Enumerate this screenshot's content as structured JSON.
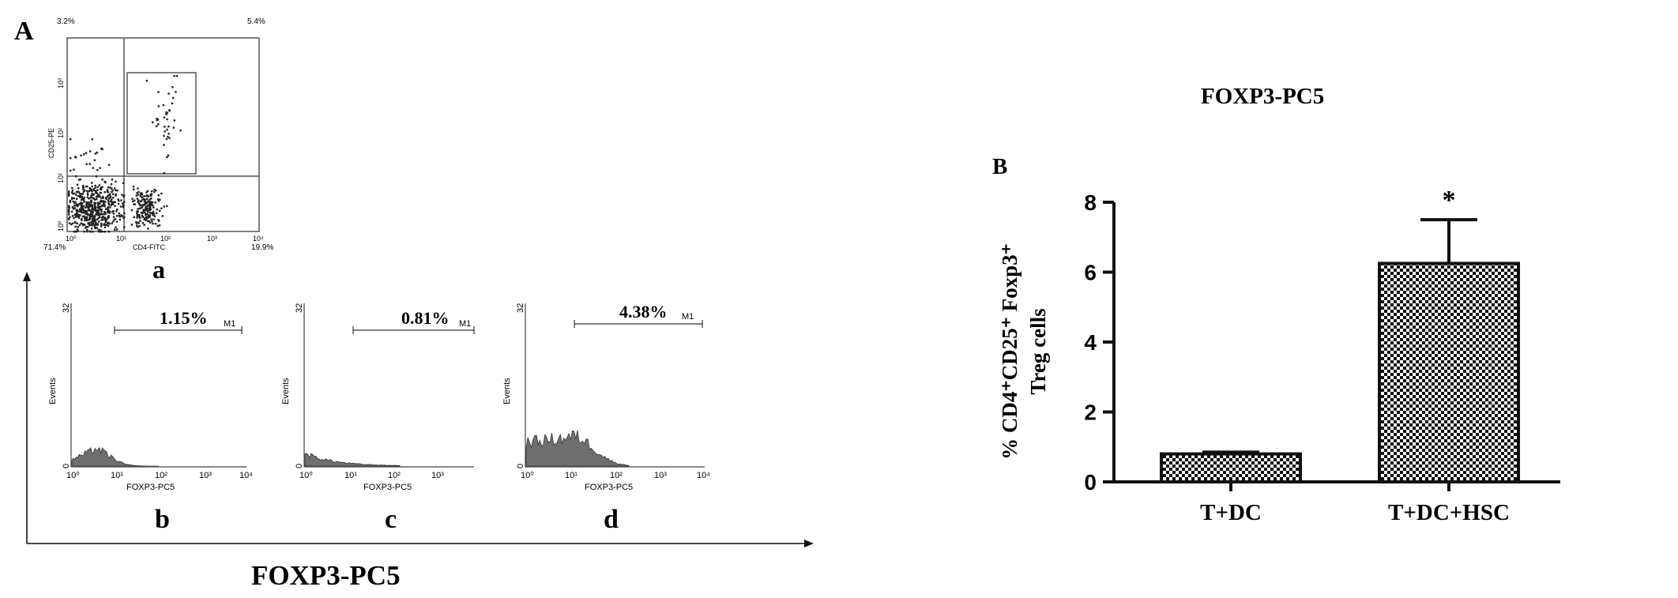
{
  "colors": {
    "ink": "#111111",
    "hist_fill": "#6f6f6f",
    "gate": "#555555",
    "checker_dark": "#111111",
    "checker_light": "#ffffff"
  },
  "panel_a": {
    "label": "A",
    "scatter": {
      "sublabel": "a",
      "x_axis_label": "CD4-FITC",
      "y_axis_label": "CD25-PE",
      "x_ticks": [
        "10⁰",
        "10¹",
        "10²",
        "10³",
        "10⁴"
      ],
      "y_ticks": [
        "10⁰",
        "10¹",
        "10²",
        "10³"
      ],
      "quadrants": {
        "upper_left": "3.2%",
        "upper_right": "5.4%",
        "lower_left": "71.4%",
        "lower_right": "19.9%"
      }
    },
    "histograms": [
      {
        "sublabel": "b",
        "percent": "1.15%",
        "marker": "M1",
        "x_label": "FOXP3-PC5",
        "y_label": "Events",
        "y_max": "32",
        "y_min": "0",
        "x_ticks": [
          "10⁰",
          "10¹",
          "10²",
          "10³",
          "10⁴"
        ]
      },
      {
        "sublabel": "c",
        "percent": "0.81%",
        "marker": "M1",
        "x_label": "FOXP3-PC5",
        "y_label": "Events",
        "y_max": "32",
        "y_min": "0",
        "x_ticks": [
          "10⁰",
          "10¹",
          "10²",
          "10³"
        ]
      },
      {
        "sublabel": "d",
        "percent": "4.38%",
        "marker": "M1",
        "x_label": "FOXP3-PC5",
        "y_label": "Events",
        "y_max": "32",
        "y_min": "0",
        "x_ticks": [
          "10⁰",
          "10¹",
          "10²",
          "10³",
          "10⁴"
        ]
      }
    ],
    "bottom_label": "FOXP3-PC5"
  },
  "panel_b": {
    "label": "B",
    "significance_mark": "*"
  },
  "chart_data": {
    "type": "bar",
    "title": "FOXP3-PC5",
    "xlabel": "",
    "ylabel_line1": "% CD4⁺CD25⁺ Foxp3⁺",
    "ylabel_line2": "Treg  cells",
    "categories": [
      "T+DC",
      "T+DC+HSC"
    ],
    "values": [
      0.8,
      6.25
    ],
    "error": [
      0.05,
      1.25
    ],
    "ylim": [
      0,
      8
    ],
    "yticks": [
      "0",
      "2",
      "4",
      "6",
      "8"
    ],
    "grid": false,
    "pattern": "checkerboard"
  }
}
